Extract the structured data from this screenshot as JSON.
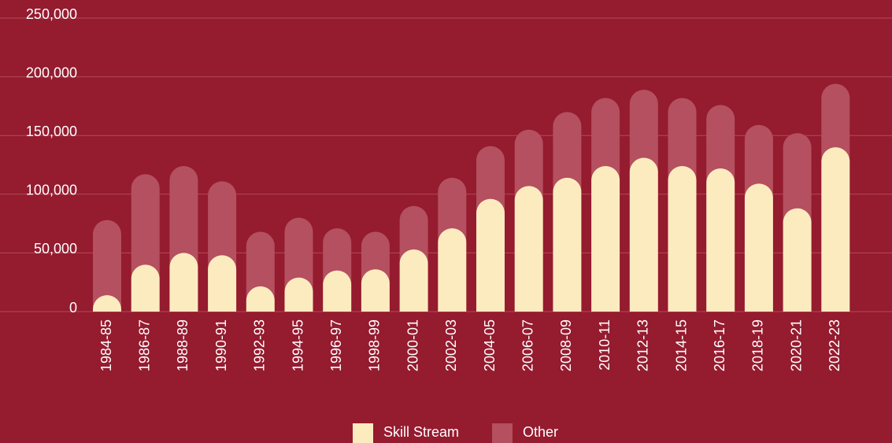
{
  "chart_data": {
    "type": "stacked-bar",
    "categories": [
      "1984-85",
      "1986-87",
      "1988-89",
      "1990-91",
      "1992-93",
      "1994-95",
      "1996-97",
      "1998-99",
      "2000-01",
      "2002-03",
      "2004-05",
      "2006-07",
      "2008-09",
      "2010-11",
      "2012-13",
      "2014-15",
      "2016-17",
      "2018-19",
      "2020-21",
      "2022-23"
    ],
    "series": [
      {
        "name": "Skill Stream",
        "color": "#fdebc0",
        "values": [
          14000,
          40000,
          50000,
          48000,
          21500,
          29000,
          35000,
          36000,
          53000,
          71000,
          96000,
          107000,
          114000,
          124000,
          131000,
          124000,
          122000,
          109000,
          88000,
          140000
        ]
      },
      {
        "name": "Other",
        "color": "#b4505f",
        "values": [
          64000,
          77000,
          74000,
          63000,
          46500,
          51000,
          36000,
          32000,
          37000,
          43000,
          45000,
          48000,
          56000,
          58000,
          58000,
          58000,
          54000,
          50000,
          64000,
          54000
        ]
      }
    ],
    "ylim": [
      0,
      250000
    ],
    "yticks": [
      0,
      {
        "value": 50000,
        "label": "50,000"
      },
      {
        "value": 100000,
        "label": "100,000"
      },
      {
        "value": 150000,
        "label": "150,000"
      },
      {
        "value": 200000,
        "label": "200,000"
      },
      {
        "value": 250000,
        "label": "250,000"
      }
    ],
    "grid": true
  }
}
